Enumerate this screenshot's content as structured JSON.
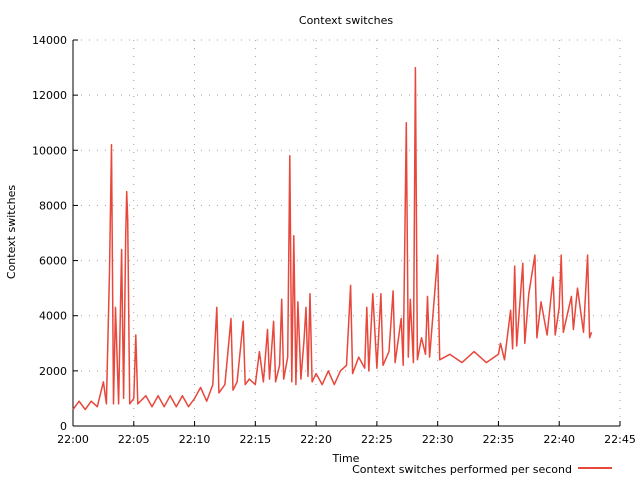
{
  "chart_data": {
    "type": "line",
    "title": "Context switches",
    "xlabel": "Time",
    "ylabel": "Context switches",
    "x_ticks": [
      "22:00",
      "22:05",
      "22:10",
      "22:15",
      "22:20",
      "22:25",
      "22:30",
      "22:35",
      "22:40",
      "22:45"
    ],
    "x_range": [
      "22:00",
      "22:45"
    ],
    "y_ticks": [
      0,
      2000,
      4000,
      6000,
      8000,
      10000,
      12000,
      14000
    ],
    "ylim": [
      0,
      14000
    ],
    "grid": true,
    "legend_position": "bottom-right",
    "series": [
      {
        "name": "Context switches performed per second",
        "color": "#e8473b",
        "points": [
          [
            "22:00:00",
            600
          ],
          [
            "22:00:30",
            900
          ],
          [
            "22:01:00",
            600
          ],
          [
            "22:01:30",
            900
          ],
          [
            "22:02:00",
            700
          ],
          [
            "22:02:30",
            1600
          ],
          [
            "22:02:45",
            800
          ],
          [
            "22:03:00",
            5600
          ],
          [
            "22:03:10",
            10200
          ],
          [
            "22:03:20",
            800
          ],
          [
            "22:03:30",
            4300
          ],
          [
            "22:03:45",
            800
          ],
          [
            "22:04:00",
            6400
          ],
          [
            "22:04:10",
            1000
          ],
          [
            "22:04:20",
            6900
          ],
          [
            "22:04:25",
            8500
          ],
          [
            "22:04:30",
            7500
          ],
          [
            "22:04:40",
            800
          ],
          [
            "22:05:00",
            1000
          ],
          [
            "22:05:10",
            3300
          ],
          [
            "22:05:20",
            800
          ],
          [
            "22:06:00",
            1100
          ],
          [
            "22:06:30",
            700
          ],
          [
            "22:07:00",
            1100
          ],
          [
            "22:07:30",
            700
          ],
          [
            "22:08:00",
            1100
          ],
          [
            "22:08:30",
            700
          ],
          [
            "22:09:00",
            1100
          ],
          [
            "22:09:30",
            700
          ],
          [
            "22:10:00",
            1000
          ],
          [
            "22:10:30",
            1400
          ],
          [
            "22:11:00",
            900
          ],
          [
            "22:11:30",
            1500
          ],
          [
            "22:11:50",
            4300
          ],
          [
            "22:12:00",
            1200
          ],
          [
            "22:12:30",
            1500
          ],
          [
            "22:13:00",
            3900
          ],
          [
            "22:13:10",
            1300
          ],
          [
            "22:13:30",
            1600
          ],
          [
            "22:14:00",
            3800
          ],
          [
            "22:14:10",
            1500
          ],
          [
            "22:14:30",
            1700
          ],
          [
            "22:15:00",
            1500
          ],
          [
            "22:15:20",
            2700
          ],
          [
            "22:15:40",
            1600
          ],
          [
            "22:16:00",
            3500
          ],
          [
            "22:16:10",
            1700
          ],
          [
            "22:16:30",
            3800
          ],
          [
            "22:16:40",
            1600
          ],
          [
            "22:17:00",
            2200
          ],
          [
            "22:17:10",
            4600
          ],
          [
            "22:17:20",
            1700
          ],
          [
            "22:17:40",
            2500
          ],
          [
            "22:17:50",
            9800
          ],
          [
            "22:18:00",
            1600
          ],
          [
            "22:18:10",
            6900
          ],
          [
            "22:18:20",
            1500
          ],
          [
            "22:18:30",
            4500
          ],
          [
            "22:18:45",
            1700
          ],
          [
            "22:19:00",
            3100
          ],
          [
            "22:19:10",
            4300
          ],
          [
            "22:19:20",
            1800
          ],
          [
            "22:19:30",
            4800
          ],
          [
            "22:19:40",
            1600
          ],
          [
            "22:20:00",
            1900
          ],
          [
            "22:20:30",
            1500
          ],
          [
            "22:21:00",
            2000
          ],
          [
            "22:21:30",
            1500
          ],
          [
            "22:22:00",
            2000
          ],
          [
            "22:22:30",
            2200
          ],
          [
            "22:22:50",
            5100
          ],
          [
            "22:23:00",
            1900
          ],
          [
            "22:23:30",
            2500
          ],
          [
            "22:24:00",
            2100
          ],
          [
            "22:24:10",
            4300
          ],
          [
            "22:24:20",
            2000
          ],
          [
            "22:24:40",
            4800
          ],
          [
            "22:25:00",
            2100
          ],
          [
            "22:25:20",
            4800
          ],
          [
            "22:25:30",
            2200
          ],
          [
            "22:26:00",
            2700
          ],
          [
            "22:26:20",
            4900
          ],
          [
            "22:26:30",
            2300
          ],
          [
            "22:27:00",
            3900
          ],
          [
            "22:27:10",
            2200
          ],
          [
            "22:27:25",
            11000
          ],
          [
            "22:27:35",
            2500
          ],
          [
            "22:27:45",
            4600
          ],
          [
            "22:28:00",
            2300
          ],
          [
            "22:28:10",
            13000
          ],
          [
            "22:28:20",
            2400
          ],
          [
            "22:28:40",
            3200
          ],
          [
            "22:29:00",
            2600
          ],
          [
            "22:29:10",
            4700
          ],
          [
            "22:29:20",
            2500
          ],
          [
            "22:30:00",
            6200
          ],
          [
            "22:30:10",
            2400
          ],
          [
            "22:31:00",
            2600
          ],
          [
            "22:32:00",
            2300
          ],
          [
            "22:33:00",
            2700
          ],
          [
            "22:34:00",
            2300
          ],
          [
            "22:35:00",
            2600
          ],
          [
            "22:35:10",
            3000
          ],
          [
            "22:35:30",
            2400
          ],
          [
            "22:36:00",
            4200
          ],
          [
            "22:36:10",
            2800
          ],
          [
            "22:36:20",
            5800
          ],
          [
            "22:36:30",
            2900
          ],
          [
            "22:37:00",
            5900
          ],
          [
            "22:37:10",
            3000
          ],
          [
            "22:37:30",
            4800
          ],
          [
            "22:38:00",
            6200
          ],
          [
            "22:38:10",
            3200
          ],
          [
            "22:38:30",
            4500
          ],
          [
            "22:39:00",
            3300
          ],
          [
            "22:39:30",
            5400
          ],
          [
            "22:39:40",
            3300
          ],
          [
            "22:40:00",
            4300
          ],
          [
            "22:40:10",
            6200
          ],
          [
            "22:40:20",
            3400
          ],
          [
            "22:41:00",
            4700
          ],
          [
            "22:41:10",
            3500
          ],
          [
            "22:41:30",
            5000
          ],
          [
            "22:42:00",
            3400
          ],
          [
            "22:42:20",
            6200
          ],
          [
            "22:42:30",
            3200
          ],
          [
            "22:42:40",
            3400
          ]
        ]
      }
    ]
  }
}
